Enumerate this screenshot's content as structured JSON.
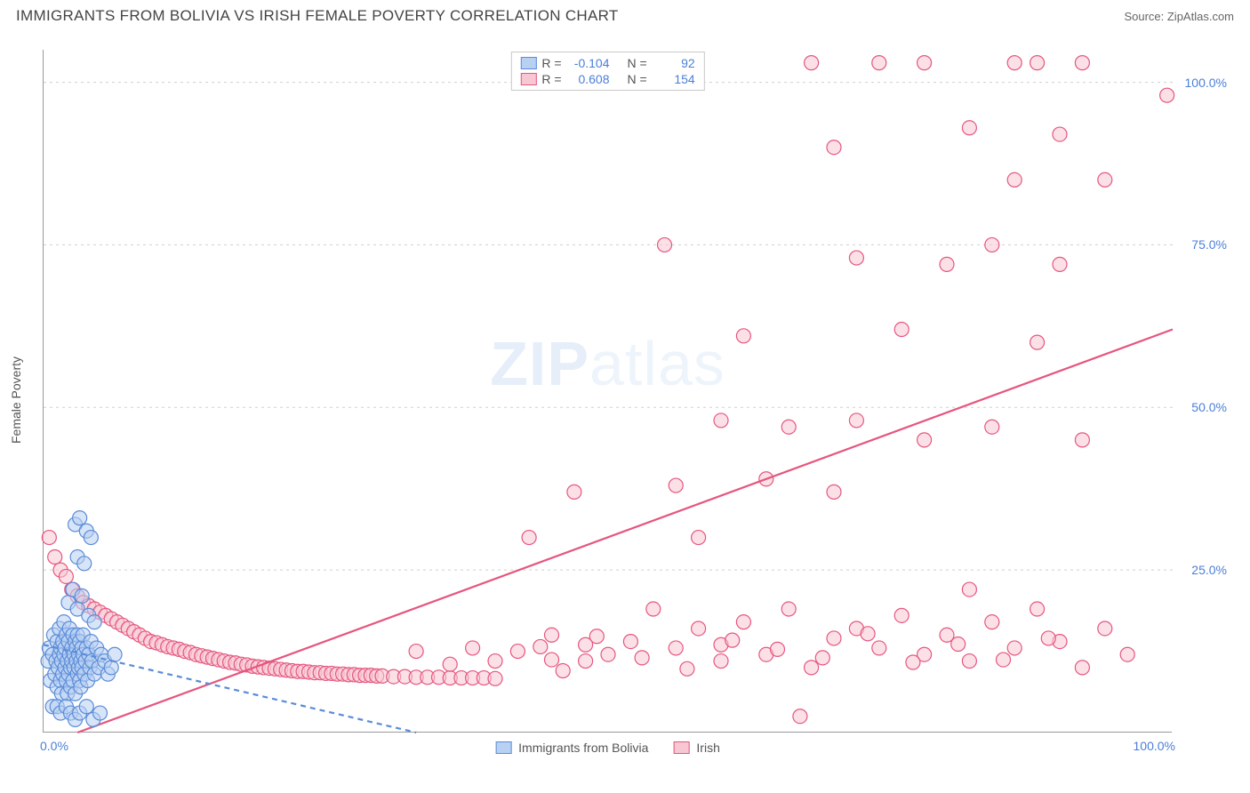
{
  "header": {
    "title": "IMMIGRANTS FROM BOLIVIA VS IRISH FEMALE POVERTY CORRELATION CHART",
    "source": "Source: ZipAtlas.com"
  },
  "watermark": {
    "left": "ZIP",
    "right": "atlas"
  },
  "chart": {
    "type": "scatter",
    "y_axis_label": "Female Poverty",
    "xlim": [
      0,
      100
    ],
    "ylim": [
      0,
      105
    ],
    "y_grid_values": [
      25,
      50,
      75,
      100
    ],
    "y_tick_labels": [
      "25.0%",
      "50.0%",
      "75.0%",
      "100.0%"
    ],
    "x_tick_min_label": "0.0%",
    "x_tick_max_label": "100.0%",
    "grid_color": "#d0d0d0",
    "axis_color": "#999999",
    "tick_label_color": "#4a7fd8",
    "background_color": "#ffffff",
    "marker_radius": 8,
    "marker_stroke_width": 1.2,
    "trend_line_width": 2.2
  },
  "series": {
    "blue": {
      "label": "Immigrants from Bolivia",
      "R_value": "-0.104",
      "N_value": "92",
      "fill": "#b8d0f2",
      "fill_opacity": 0.55,
      "stroke": "#5a8cd8",
      "trend_color": "#5a8cd8",
      "trend_dash": "6,5",
      "trend_start": [
        0,
        13.5
      ],
      "trend_end": [
        33,
        0
      ],
      "points": [
        [
          0.4,
          11
        ],
        [
          0.5,
          13
        ],
        [
          0.6,
          8
        ],
        [
          0.8,
          12
        ],
        [
          0.9,
          15
        ],
        [
          1.0,
          9
        ],
        [
          1.1,
          11
        ],
        [
          1.2,
          14
        ],
        [
          1.2,
          7
        ],
        [
          1.3,
          10
        ],
        [
          1.4,
          12
        ],
        [
          1.4,
          16
        ],
        [
          1.5,
          8
        ],
        [
          1.5,
          13
        ],
        [
          1.6,
          11
        ],
        [
          1.6,
          6
        ],
        [
          1.7,
          14
        ],
        [
          1.7,
          9
        ],
        [
          1.8,
          12
        ],
        [
          1.8,
          17
        ],
        [
          1.9,
          10
        ],
        [
          1.9,
          13
        ],
        [
          2.0,
          8
        ],
        [
          2.0,
          15
        ],
        [
          2.1,
          11
        ],
        [
          2.1,
          6
        ],
        [
          2.2,
          14
        ],
        [
          2.2,
          9
        ],
        [
          2.3,
          12
        ],
        [
          2.3,
          16
        ],
        [
          2.4,
          10
        ],
        [
          2.4,
          7
        ],
        [
          2.5,
          13
        ],
        [
          2.5,
          11
        ],
        [
          2.6,
          15
        ],
        [
          2.6,
          8
        ],
        [
          2.7,
          12
        ],
        [
          2.7,
          10
        ],
        [
          2.8,
          14
        ],
        [
          2.8,
          6
        ],
        [
          2.9,
          11
        ],
        [
          2.9,
          13
        ],
        [
          3.0,
          9
        ],
        [
          3.0,
          15
        ],
        [
          3.1,
          12
        ],
        [
          3.1,
          10
        ],
        [
          3.2,
          8
        ],
        [
          3.2,
          14
        ],
        [
          3.3,
          11
        ],
        [
          3.3,
          7
        ],
        [
          3.4,
          13
        ],
        [
          3.4,
          10
        ],
        [
          3.5,
          12
        ],
        [
          3.5,
          15
        ],
        [
          3.6,
          9
        ],
        [
          3.7,
          11
        ],
        [
          3.8,
          13
        ],
        [
          3.9,
          8
        ],
        [
          4.0,
          12
        ],
        [
          4.1,
          10
        ],
        [
          4.2,
          14
        ],
        [
          4.3,
          11
        ],
        [
          4.5,
          9
        ],
        [
          4.7,
          13
        ],
        [
          4.9,
          10
        ],
        [
          5.1,
          12
        ],
        [
          5.4,
          11
        ],
        [
          5.7,
          9
        ],
        [
          6.0,
          10
        ],
        [
          6.3,
          12
        ],
        [
          0.8,
          4
        ],
        [
          1.2,
          4
        ],
        [
          1.5,
          3
        ],
        [
          2.0,
          4
        ],
        [
          2.4,
          3
        ],
        [
          2.8,
          2
        ],
        [
          3.2,
          3
        ],
        [
          3.8,
          4
        ],
        [
          4.4,
          2
        ],
        [
          5.0,
          3
        ],
        [
          2.2,
          20
        ],
        [
          2.6,
          22
        ],
        [
          3.0,
          19
        ],
        [
          3.4,
          21
        ],
        [
          2.8,
          32
        ],
        [
          3.2,
          33
        ],
        [
          3.0,
          27
        ],
        [
          3.6,
          26
        ],
        [
          4.0,
          18
        ],
        [
          4.5,
          17
        ],
        [
          3.8,
          31
        ],
        [
          4.2,
          30
        ]
      ]
    },
    "pink": {
      "label": "Irish",
      "R_value": "0.608",
      "N_value": "154",
      "fill": "#f7c8d4",
      "fill_opacity": 0.55,
      "stroke": "#e6567e",
      "trend_color": "#e6567e",
      "trend_dash": "",
      "trend_start": [
        3,
        0
      ],
      "trend_end": [
        100,
        62
      ],
      "points": [
        [
          0.5,
          30
        ],
        [
          1,
          27
        ],
        [
          1.5,
          25
        ],
        [
          2,
          24
        ],
        [
          2.5,
          22
        ],
        [
          3,
          21
        ],
        [
          3.5,
          20
        ],
        [
          4,
          19.5
        ],
        [
          4.5,
          19
        ],
        [
          5,
          18.5
        ],
        [
          5.5,
          18
        ],
        [
          6,
          17.5
        ],
        [
          6.5,
          17
        ],
        [
          7,
          16.5
        ],
        [
          7.5,
          16
        ],
        [
          8,
          15.5
        ],
        [
          8.5,
          15
        ],
        [
          9,
          14.5
        ],
        [
          9.5,
          14
        ],
        [
          10,
          13.8
        ],
        [
          10.5,
          13.5
        ],
        [
          11,
          13.2
        ],
        [
          11.5,
          13
        ],
        [
          12,
          12.8
        ],
        [
          12.5,
          12.5
        ],
        [
          13,
          12.3
        ],
        [
          13.5,
          12
        ],
        [
          14,
          11.8
        ],
        [
          14.5,
          11.6
        ],
        [
          15,
          11.4
        ],
        [
          15.5,
          11.2
        ],
        [
          16,
          11
        ],
        [
          16.5,
          10.8
        ],
        [
          17,
          10.7
        ],
        [
          17.5,
          10.5
        ],
        [
          18,
          10.4
        ],
        [
          18.5,
          10.2
        ],
        [
          19,
          10.1
        ],
        [
          19.5,
          10
        ],
        [
          20,
          9.9
        ],
        [
          20.5,
          9.8
        ],
        [
          21,
          9.7
        ],
        [
          21.5,
          9.6
        ],
        [
          22,
          9.5
        ],
        [
          22.5,
          9.4
        ],
        [
          23,
          9.4
        ],
        [
          23.5,
          9.3
        ],
        [
          24,
          9.2
        ],
        [
          24.5,
          9.2
        ],
        [
          25,
          9.1
        ],
        [
          25.5,
          9.1
        ],
        [
          26,
          9
        ],
        [
          26.5,
          9
        ],
        [
          27,
          8.9
        ],
        [
          27.5,
          8.9
        ],
        [
          28,
          8.8
        ],
        [
          28.5,
          8.8
        ],
        [
          29,
          8.8
        ],
        [
          29.5,
          8.7
        ],
        [
          30,
          8.7
        ],
        [
          31,
          8.6
        ],
        [
          32,
          8.6
        ],
        [
          33,
          8.5
        ],
        [
          34,
          8.5
        ],
        [
          35,
          8.5
        ],
        [
          36,
          8.4
        ],
        [
          37,
          8.4
        ],
        [
          38,
          8.4
        ],
        [
          39,
          8.4
        ],
        [
          40,
          8.3
        ],
        [
          33,
          12.5
        ],
        [
          36,
          10.5
        ],
        [
          38,
          13
        ],
        [
          40,
          11
        ],
        [
          42,
          12.5
        ],
        [
          44,
          13.2
        ],
        [
          46,
          9.5
        ],
        [
          48,
          11
        ],
        [
          43,
          30
        ],
        [
          45,
          15
        ],
        [
          47,
          37
        ],
        [
          48,
          13.5
        ],
        [
          50,
          12
        ],
        [
          52,
          14
        ],
        [
          54,
          19
        ],
        [
          56,
          13
        ],
        [
          58,
          16
        ],
        [
          60,
          11
        ],
        [
          55,
          75
        ],
        [
          56,
          38
        ],
        [
          58,
          30
        ],
        [
          60,
          48
        ],
        [
          60,
          13.5
        ],
        [
          62,
          17
        ],
        [
          62,
          61
        ],
        [
          64,
          12
        ],
        [
          64,
          39
        ],
        [
          66,
          47
        ],
        [
          66,
          19
        ],
        [
          68,
          10
        ],
        [
          68,
          103
        ],
        [
          70,
          14.5
        ],
        [
          70,
          37
        ],
        [
          70,
          90
        ],
        [
          72,
          16
        ],
        [
          72,
          48
        ],
        [
          72,
          73
        ],
        [
          74,
          13
        ],
        [
          74,
          103
        ],
        [
          76,
          18
        ],
        [
          76,
          62
        ],
        [
          78,
          12
        ],
        [
          78,
          45
        ],
        [
          78,
          103
        ],
        [
          80,
          15
        ],
        [
          80,
          72
        ],
        [
          82,
          11
        ],
        [
          82,
          93
        ],
        [
          82,
          22
        ],
        [
          84,
          17
        ],
        [
          84,
          47
        ],
        [
          84,
          75
        ],
        [
          86,
          13
        ],
        [
          86,
          85
        ],
        [
          86,
          103
        ],
        [
          88,
          19
        ],
        [
          88,
          60
        ],
        [
          88,
          103
        ],
        [
          90,
          14
        ],
        [
          90,
          72
        ],
        [
          90,
          92
        ],
        [
          92,
          10
        ],
        [
          92,
          45
        ],
        [
          92,
          103
        ],
        [
          94,
          16
        ],
        [
          94,
          85
        ],
        [
          96,
          12
        ],
        [
          45,
          11.2
        ],
        [
          49,
          14.8
        ],
        [
          53,
          11.5
        ],
        [
          57,
          9.8
        ],
        [
          61,
          14.2
        ],
        [
          65,
          12.8
        ],
        [
          69,
          11.5
        ],
        [
          73,
          15.2
        ],
        [
          77,
          10.8
        ],
        [
          81,
          13.6
        ],
        [
          85,
          11.2
        ],
        [
          89,
          14.5
        ],
        [
          99.5,
          98
        ],
        [
          67,
          2.5
        ]
      ]
    }
  },
  "legend_top": {
    "R_label": "R =",
    "N_label": "N ="
  }
}
